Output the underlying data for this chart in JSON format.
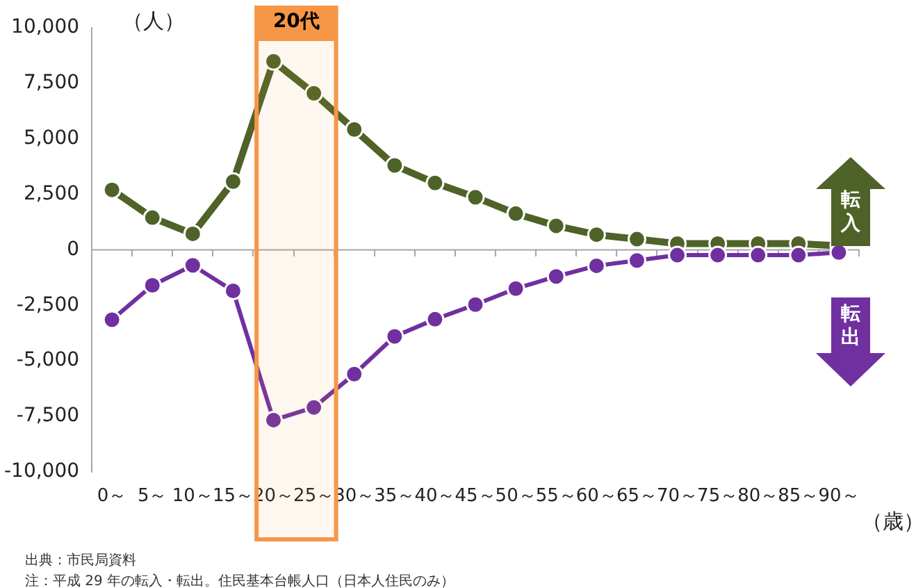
{
  "chart_data": {
    "type": "line",
    "ylabel": "（人）",
    "xlabel": "（歳）",
    "categories": [
      "0～",
      "5～",
      "10～",
      "15～",
      "20～",
      "25～",
      "30～",
      "35～",
      "40～",
      "45～",
      "50～",
      "55～",
      "60～",
      "65～",
      "70～",
      "75～",
      "80～",
      "85～",
      "90～"
    ],
    "series": [
      {
        "name": "転入",
        "color": "#4f6228",
        "values": [
          2700,
          1450,
          720,
          3070,
          8490,
          7050,
          5420,
          3800,
          3010,
          2370,
          1630,
          1080,
          680,
          480,
          280,
          280,
          280,
          280,
          180
        ]
      },
      {
        "name": "転出",
        "color": "#7030a0",
        "values": [
          -3150,
          -1600,
          -700,
          -1850,
          -7670,
          -7100,
          -5600,
          -3900,
          -3130,
          -2470,
          -1750,
          -1200,
          -720,
          -480,
          -240,
          -240,
          -240,
          -240,
          -120
        ]
      }
    ],
    "ylim": [
      -10000,
      10000
    ],
    "yticks": [
      {
        "value": -10000,
        "label": "-10,000"
      },
      {
        "value": -7500,
        "label": "-7,500"
      },
      {
        "value": -5000,
        "label": "-5,000"
      },
      {
        "value": -2500,
        "label": "-2,500"
      },
      0,
      {
        "value": 2500,
        "label": "2,500"
      },
      {
        "value": 5000,
        "label": "5,000"
      },
      {
        "value": 7500,
        "label": "7,500"
      },
      {
        "value": 10000,
        "label": "10,000"
      }
    ],
    "bands": [
      {
        "axis": "x",
        "from": "20～",
        "to": "25～",
        "label": "20代",
        "color": "#f79646"
      }
    ],
    "ref_lines": [
      {
        "axis": "y",
        "value": 0,
        "color": "#a6a6a6"
      }
    ],
    "marker": "circle",
    "line_style": "solid",
    "legend": false,
    "grid": false,
    "annotations": [
      "出典：市民局資料",
      "注：平成 29 年の転入・転出。住民基本台帳人口（日本人住民のみ）"
    ]
  }
}
